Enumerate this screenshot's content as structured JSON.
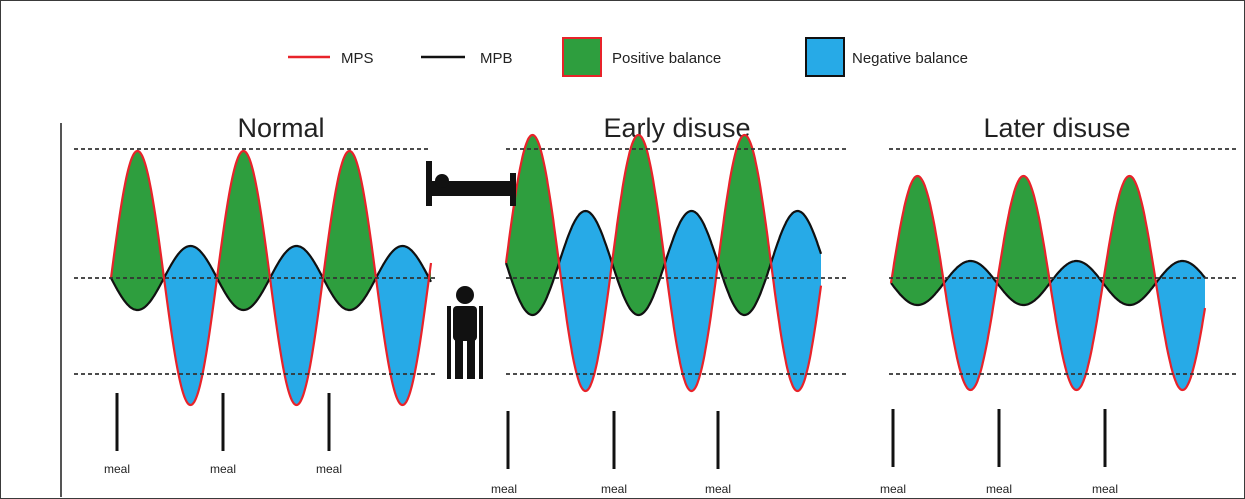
{
  "legend": {
    "mps_label": "MPS",
    "mpb_label": "MPB",
    "positive_label": "Positive balance",
    "negative_label": "Negative balance"
  },
  "panels": [
    {
      "title": "Normal",
      "meal_label": "meal"
    },
    {
      "title": "Early disuse",
      "meal_label": "meal"
    },
    {
      "title": "Later disuse",
      "meal_label": "meal"
    }
  ],
  "icons": [
    "hospital-bed-icon",
    "person-with-crutches-icon"
  ],
  "colors": {
    "mps_line": "#e8232a",
    "mpb_line": "#111111",
    "positive_fill": "#2e9e3e",
    "negative_fill": "#27aae7"
  }
}
